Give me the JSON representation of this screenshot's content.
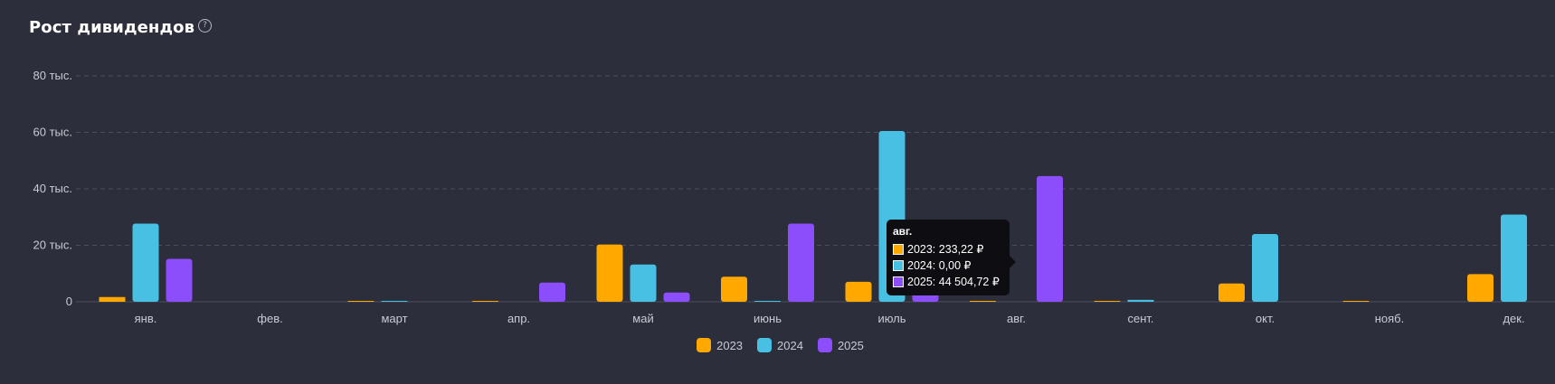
{
  "title": "Рост дивидендов",
  "help_icon": "question-circle-icon",
  "chart_data": {
    "type": "bar",
    "categories": [
      "янв.",
      "фев.",
      "март",
      "апр.",
      "май",
      "июнь",
      "июль",
      "авг.",
      "сент.",
      "окт.",
      "нояб.",
      "дек."
    ],
    "series": [
      {
        "name": "2023",
        "color": "#ffa800",
        "values": [
          1700,
          0,
          200,
          200,
          20300,
          8900,
          7100,
          233.22,
          200,
          6500,
          200,
          9800
        ]
      },
      {
        "name": "2024",
        "color": "#47c0e3",
        "values": [
          27700,
          0,
          200,
          0,
          13200,
          300,
          60500,
          0.0,
          700,
          24000,
          0,
          30900
        ]
      },
      {
        "name": "2025",
        "color": "#8c4dfa",
        "values": [
          15200,
          0,
          0,
          6800,
          3300,
          27700,
          4300,
          44504.72,
          0,
          0,
          0,
          0
        ]
      }
    ],
    "ylim": [
      0,
      80000
    ],
    "yticks": [
      {
        "value": 0,
        "label": "0"
      },
      {
        "value": 20000,
        "label": "20 тыс."
      },
      {
        "value": 40000,
        "label": "40 тыс."
      },
      {
        "value": 60000,
        "label": "60 тыс."
      },
      {
        "value": 80000,
        "label": "80 тыс."
      }
    ],
    "grid": true,
    "legend_position": "bottom-center"
  },
  "tooltip": {
    "title": "авг.",
    "rows": [
      {
        "text": "2023: 233,22 ₽",
        "color": "#ffa800"
      },
      {
        "text": "2024: 0,00 ₽",
        "color": "#47c0e3"
      },
      {
        "text": "2025: 44 504,72 ₽",
        "color": "#8c4dfa"
      }
    ]
  },
  "background_color": "#2d2e3b"
}
